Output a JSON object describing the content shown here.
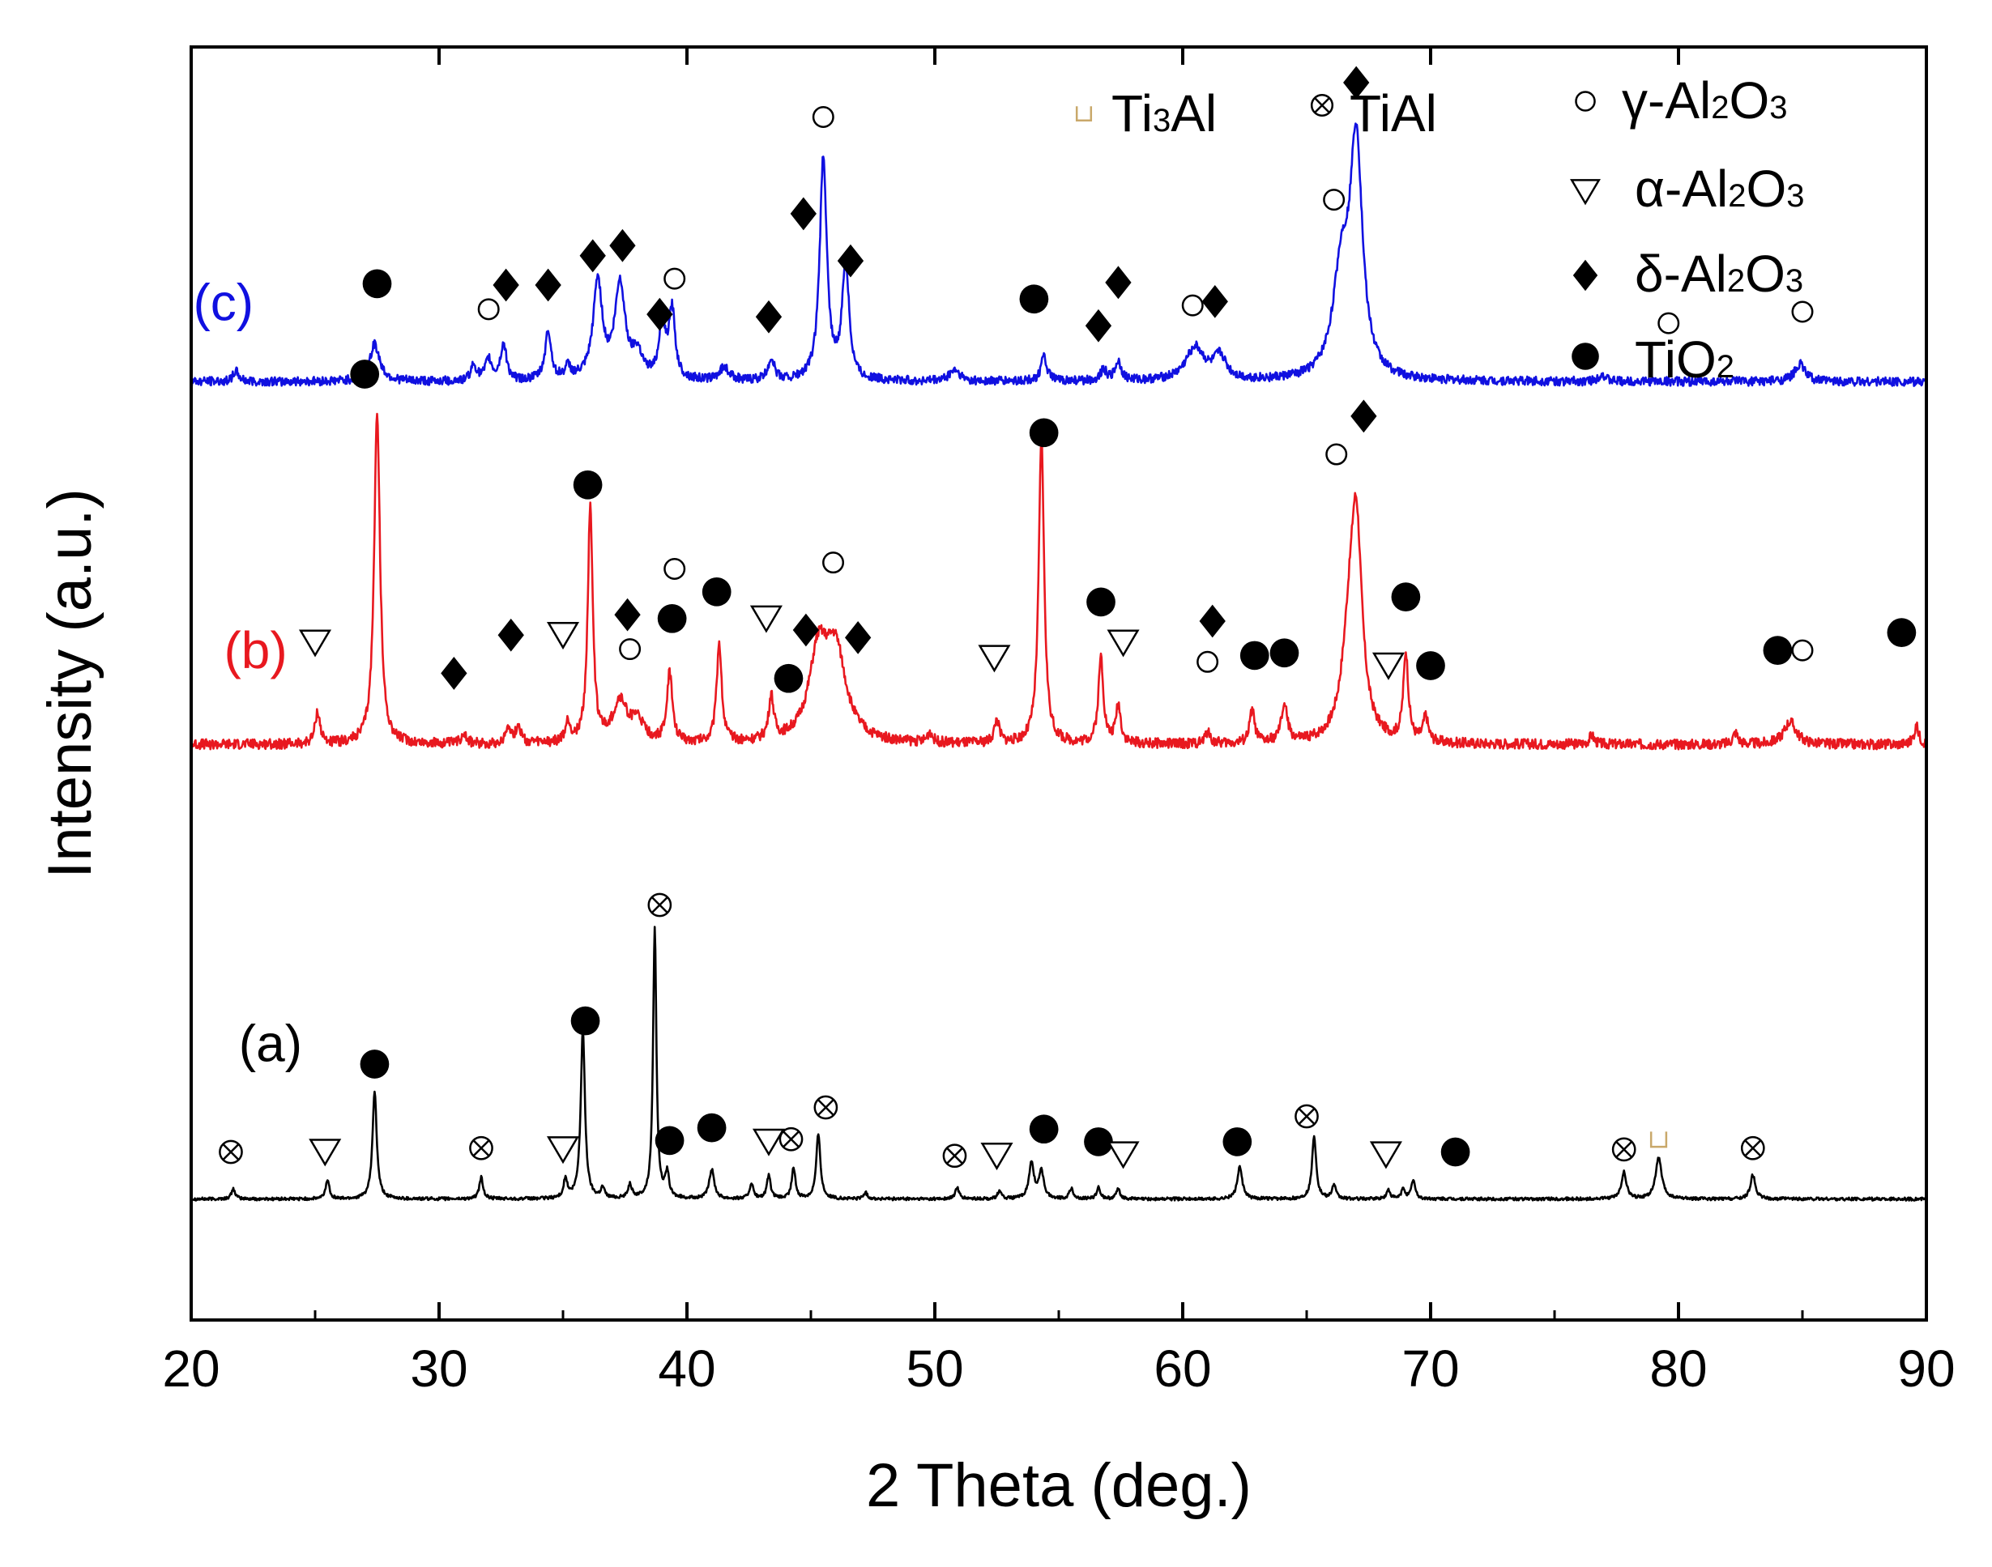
{
  "chart_data": {
    "type": "line",
    "title": "",
    "xlabel": "2 Theta (deg.)",
    "ylabel": "Intensity (a.u.)",
    "xlim": [
      20,
      90
    ],
    "ylim": [
      0,
      100
    ],
    "xticks": [
      20,
      30,
      40,
      50,
      60,
      70,
      80,
      90
    ],
    "y_ticks_shown": false,
    "grid": false,
    "legend": {
      "position": "top-right",
      "entries": [
        {
          "marker": "square-open",
          "name": "Ti3Al",
          "base": "Ti",
          "sub1": "3",
          "rest": "Al",
          "sub2": "",
          "tail": "",
          "color": "#c9a86a"
        },
        {
          "marker": "circle-cross",
          "name": "TiAl",
          "base": "TiAl",
          "sub1": "",
          "rest": "",
          "sub2": "",
          "tail": "",
          "color": "#000000"
        },
        {
          "marker": "circle-open",
          "name": "γ-Al2O3",
          "base": "γ-Al",
          "sub1": "2",
          "rest": "O",
          "sub2": "3",
          "tail": "",
          "color": "#000000"
        },
        {
          "marker": "triangle-down-open",
          "name": "α-Al2O3",
          "base": "α-Al",
          "sub1": "2",
          "rest": "O",
          "sub2": "3",
          "tail": "",
          "color": "#000000"
        },
        {
          "marker": "diamond-filled",
          "name": "δ-Al2O3",
          "base": "δ-Al",
          "sub1": "2",
          "rest": "O",
          "sub2": "3",
          "tail": "",
          "color": "#000000"
        },
        {
          "marker": "circle-filled",
          "name": "TiO2",
          "base": "TiO",
          "sub1": "2",
          "rest": "",
          "sub2": "",
          "tail": "",
          "color": "#000000"
        }
      ]
    },
    "series": [
      {
        "name": "(a)",
        "color": "#000000",
        "baseline": 9.5,
        "noise": 0.12,
        "width_default": 0.09,
        "peaks": [
          {
            "x": 21.7,
            "h": 0.8
          },
          {
            "x": 25.5,
            "h": 1.5
          },
          {
            "x": 27.4,
            "h": 8.5,
            "w": 0.1
          },
          {
            "x": 31.7,
            "h": 1.7
          },
          {
            "x": 35.1,
            "h": 1.5
          },
          {
            "x": 35.8,
            "h": 13.4,
            "w": 0.1
          },
          {
            "x": 36.6,
            "h": 0.8
          },
          {
            "x": 37.7,
            "h": 1.1
          },
          {
            "x": 38.7,
            "h": 21.3,
            "w": 0.08
          },
          {
            "x": 39.2,
            "h": 1.9
          },
          {
            "x": 41.0,
            "h": 2.3,
            "w": 0.12
          },
          {
            "x": 42.6,
            "h": 1.2
          },
          {
            "x": 43.3,
            "h": 1.8
          },
          {
            "x": 44.3,
            "h": 2.4
          },
          {
            "x": 45.3,
            "h": 5.1,
            "w": 0.1
          },
          {
            "x": 47.2,
            "h": 0.5
          },
          {
            "x": 50.9,
            "h": 0.9
          },
          {
            "x": 52.6,
            "h": 0.6
          },
          {
            "x": 53.9,
            "h": 2.8,
            "w": 0.12
          },
          {
            "x": 54.3,
            "h": 2.1,
            "w": 0.12
          },
          {
            "x": 55.5,
            "h": 0.8
          },
          {
            "x": 56.6,
            "h": 0.9
          },
          {
            "x": 57.4,
            "h": 0.8
          },
          {
            "x": 62.3,
            "h": 2.5,
            "w": 0.12
          },
          {
            "x": 65.3,
            "h": 5.0,
            "w": 0.1
          },
          {
            "x": 66.1,
            "h": 1.1
          },
          {
            "x": 68.3,
            "h": 0.7
          },
          {
            "x": 68.9,
            "h": 0.8
          },
          {
            "x": 69.3,
            "h": 1.5
          },
          {
            "x": 77.8,
            "h": 2.1,
            "w": 0.12
          },
          {
            "x": 79.2,
            "h": 3.2,
            "w": 0.15
          },
          {
            "x": 83.0,
            "h": 1.9,
            "w": 0.12
          }
        ],
        "markers": [
          {
            "x": 21.6,
            "y": 13.2,
            "m": "circle-cross"
          },
          {
            "x": 25.4,
            "y": 13.3,
            "m": "triangle-down-open"
          },
          {
            "x": 27.4,
            "y": 20.1,
            "m": "circle-filled"
          },
          {
            "x": 31.7,
            "y": 13.5,
            "m": "circle-cross"
          },
          {
            "x": 35.0,
            "y": 13.5,
            "m": "triangle-down-open"
          },
          {
            "x": 35.9,
            "y": 23.5,
            "m": "circle-filled"
          },
          {
            "x": 38.9,
            "y": 32.6,
            "m": "circle-cross"
          },
          {
            "x": 39.3,
            "y": 14.1,
            "m": "circle-filled"
          },
          {
            "x": 41.0,
            "y": 15.1,
            "m": "circle-filled"
          },
          {
            "x": 43.3,
            "y": 14.1,
            "m": "triangle-down-open"
          },
          {
            "x": 44.2,
            "y": 14.2,
            "m": "circle-cross"
          },
          {
            "x": 45.6,
            "y": 16.7,
            "m": "circle-cross"
          },
          {
            "x": 50.8,
            "y": 12.9,
            "m": "circle-cross"
          },
          {
            "x": 52.5,
            "y": 13.0,
            "m": "triangle-down-open"
          },
          {
            "x": 54.4,
            "y": 15.0,
            "m": "circle-filled"
          },
          {
            "x": 56.6,
            "y": 14.0,
            "m": "circle-filled"
          },
          {
            "x": 57.6,
            "y": 13.1,
            "m": "triangle-down-open"
          },
          {
            "x": 62.2,
            "y": 14.0,
            "m": "circle-filled"
          },
          {
            "x": 65.0,
            "y": 16.0,
            "m": "circle-cross"
          },
          {
            "x": 68.2,
            "y": 13.1,
            "m": "triangle-down-open"
          },
          {
            "x": 71.0,
            "y": 13.2,
            "m": "circle-filled"
          },
          {
            "x": 77.8,
            "y": 13.4,
            "m": "circle-cross"
          },
          {
            "x": 79.2,
            "y": 14.2,
            "m": "square-open"
          },
          {
            "x": 83.0,
            "y": 13.5,
            "m": "circle-cross"
          }
        ],
        "label": {
          "text": "(a)",
          "x": 23.2,
          "y": 21.4
        }
      },
      {
        "name": "(b)",
        "color": "#e8181f",
        "baseline": 45.2,
        "noise": 0.4,
        "width_default": 0.12,
        "peaks": [
          {
            "x": 25.1,
            "h": 2.5
          },
          {
            "x": 27.5,
            "h": 26.2,
            "w": 0.14
          },
          {
            "x": 31.0,
            "h": 0.9
          },
          {
            "x": 32.8,
            "h": 1.4
          },
          {
            "x": 33.2,
            "h": 1.4
          },
          {
            "x": 35.2,
            "h": 1.5
          },
          {
            "x": 36.1,
            "h": 18.6,
            "w": 0.12
          },
          {
            "x": 37.3,
            "h": 3.2,
            "w": 0.35
          },
          {
            "x": 38.0,
            "h": 1.6,
            "w": 0.3
          },
          {
            "x": 39.3,
            "h": 5.4,
            "w": 0.13
          },
          {
            "x": 41.3,
            "h": 7.9,
            "w": 0.12
          },
          {
            "x": 43.4,
            "h": 3.4,
            "w": 0.12
          },
          {
            "x": 45.3,
            "h": 6.5,
            "w": 0.45
          },
          {
            "x": 46.0,
            "h": 6.8,
            "w": 0.5
          },
          {
            "x": 49.8,
            "h": 0.8
          },
          {
            "x": 52.5,
            "h": 1.8
          },
          {
            "x": 54.3,
            "h": 24.1,
            "w": 0.13
          },
          {
            "x": 56.7,
            "h": 6.8,
            "w": 0.12
          },
          {
            "x": 57.4,
            "h": 3.0
          },
          {
            "x": 61.0,
            "h": 0.9
          },
          {
            "x": 62.8,
            "h": 2.6
          },
          {
            "x": 64.1,
            "h": 2.9,
            "w": 0.15
          },
          {
            "x": 66.7,
            "h": 6.0,
            "w": 0.35
          },
          {
            "x": 67.0,
            "h": 16.0,
            "w": 0.28
          },
          {
            "x": 69.0,
            "h": 6.9,
            "w": 0.12
          },
          {
            "x": 69.8,
            "h": 2.0
          },
          {
            "x": 76.5,
            "h": 0.7
          },
          {
            "x": 82.3,
            "h": 0.9
          },
          {
            "x": 84.5,
            "h": 1.8,
            "w": 0.3
          },
          {
            "x": 89.6,
            "h": 1.4
          }
        ],
        "markers": [
          {
            "x": 25.0,
            "y": 53.3,
            "m": "triangle-down-open"
          },
          {
            "x": 27.0,
            "y": 74.3,
            "m": "circle-filled"
          },
          {
            "x": 30.6,
            "y": 50.8,
            "m": "diamond-filled"
          },
          {
            "x": 32.9,
            "y": 53.8,
            "m": "diamond-filled"
          },
          {
            "x": 35.0,
            "y": 53.9,
            "m": "triangle-down-open"
          },
          {
            "x": 36.0,
            "y": 65.6,
            "m": "circle-filled"
          },
          {
            "x": 37.7,
            "y": 52.7,
            "m": "circle-open"
          },
          {
            "x": 37.6,
            "y": 55.4,
            "m": "diamond-filled"
          },
          {
            "x": 39.4,
            "y": 55.1,
            "m": "circle-filled"
          },
          {
            "x": 39.5,
            "y": 59.0,
            "m": "circle-open"
          },
          {
            "x": 41.2,
            "y": 57.2,
            "m": "circle-filled"
          },
          {
            "x": 43.2,
            "y": 55.2,
            "m": "triangle-down-open"
          },
          {
            "x": 44.1,
            "y": 50.4,
            "m": "circle-filled"
          },
          {
            "x": 44.8,
            "y": 54.2,
            "m": "diamond-filled"
          },
          {
            "x": 45.9,
            "y": 59.5,
            "m": "circle-open"
          },
          {
            "x": 46.9,
            "y": 53.6,
            "m": "diamond-filled"
          },
          {
            "x": 52.4,
            "y": 52.1,
            "m": "triangle-down-open"
          },
          {
            "x": 54.4,
            "y": 69.7,
            "m": "circle-filled"
          },
          {
            "x": 56.7,
            "y": 56.4,
            "m": "circle-filled"
          },
          {
            "x": 57.6,
            "y": 53.3,
            "m": "triangle-down-open"
          },
          {
            "x": 61.0,
            "y": 51.7,
            "m": "circle-open"
          },
          {
            "x": 61.2,
            "y": 54.9,
            "m": "diamond-filled"
          },
          {
            "x": 62.9,
            "y": 52.2,
            "m": "circle-filled"
          },
          {
            "x": 64.1,
            "y": 52.4,
            "m": "circle-filled"
          },
          {
            "x": 66.2,
            "y": 68.0,
            "m": "circle-open"
          },
          {
            "x": 67.3,
            "y": 71.0,
            "m": "diamond-filled"
          },
          {
            "x": 69.0,
            "y": 56.8,
            "m": "circle-filled"
          },
          {
            "x": 68.3,
            "y": 51.5,
            "m": "triangle-down-open"
          },
          {
            "x": 70.0,
            "y": 51.4,
            "m": "circle-filled"
          },
          {
            "x": 84.0,
            "y": 52.6,
            "m": "circle-filled"
          },
          {
            "x": 85.0,
            "y": 52.6,
            "m": "circle-open"
          },
          {
            "x": 89.0,
            "y": 54.0,
            "m": "circle-filled"
          }
        ],
        "label": {
          "text": "(b)",
          "x": 22.6,
          "y": 52.3
        }
      },
      {
        "name": "(c)",
        "color": "#1010e0",
        "baseline": 73.7,
        "noise": 0.35,
        "width_default": 0.15,
        "peaks": [
          {
            "x": 21.8,
            "h": 0.8
          },
          {
            "x": 27.4,
            "h": 2.9,
            "w": 0.25
          },
          {
            "x": 31.4,
            "h": 1.2
          },
          {
            "x": 32.0,
            "h": 1.6
          },
          {
            "x": 32.6,
            "h": 2.8
          },
          {
            "x": 34.4,
            "h": 3.8
          },
          {
            "x": 35.2,
            "h": 0.9
          },
          {
            "x": 36.4,
            "h": 7.7,
            "w": 0.22
          },
          {
            "x": 37.3,
            "h": 7.4,
            "w": 0.25
          },
          {
            "x": 38.0,
            "h": 2.0,
            "w": 0.25
          },
          {
            "x": 39.0,
            "h": 4.6
          },
          {
            "x": 39.4,
            "h": 5.3
          },
          {
            "x": 41.5,
            "h": 1.0,
            "w": 0.25
          },
          {
            "x": 43.4,
            "h": 1.7
          },
          {
            "x": 45.5,
            "h": 17.5,
            "w": 0.17
          },
          {
            "x": 46.4,
            "h": 9.0,
            "w": 0.17
          },
          {
            "x": 50.8,
            "h": 0.9,
            "w": 0.25
          },
          {
            "x": 54.4,
            "h": 1.9
          },
          {
            "x": 56.8,
            "h": 0.9
          },
          {
            "x": 57.4,
            "h": 1.5
          },
          {
            "x": 60.5,
            "h": 2.6,
            "w": 0.45
          },
          {
            "x": 61.5,
            "h": 1.8,
            "w": 0.3
          },
          {
            "x": 66.4,
            "h": 8.0,
            "w": 0.4
          },
          {
            "x": 67.0,
            "h": 18.0,
            "w": 0.3
          },
          {
            "x": 76.9,
            "h": 0.6
          },
          {
            "x": 84.9,
            "h": 1.4,
            "w": 0.25
          }
        ],
        "markers": [
          {
            "x": 27.5,
            "y": 81.4,
            "m": "circle-filled"
          },
          {
            "x": 32.0,
            "y": 79.4,
            "m": "circle-open"
          },
          {
            "x": 32.7,
            "y": 81.3,
            "m": "diamond-filled"
          },
          {
            "x": 34.4,
            "y": 81.3,
            "m": "diamond-filled"
          },
          {
            "x": 36.2,
            "y": 83.6,
            "m": "diamond-filled"
          },
          {
            "x": 37.4,
            "y": 84.4,
            "m": "diamond-filled"
          },
          {
            "x": 38.9,
            "y": 79.0,
            "m": "diamond-filled"
          },
          {
            "x": 39.5,
            "y": 81.8,
            "m": "circle-open"
          },
          {
            "x": 43.3,
            "y": 78.8,
            "m": "diamond-filled"
          },
          {
            "x": 44.7,
            "y": 86.9,
            "m": "diamond-filled"
          },
          {
            "x": 45.5,
            "y": 94.5,
            "m": "circle-open"
          },
          {
            "x": 46.6,
            "y": 83.2,
            "m": "diamond-filled"
          },
          {
            "x": 54.0,
            "y": 80.2,
            "m": "circle-filled"
          },
          {
            "x": 56.6,
            "y": 78.1,
            "m": "diamond-filled"
          },
          {
            "x": 57.4,
            "y": 81.5,
            "m": "diamond-filled"
          },
          {
            "x": 60.4,
            "y": 79.7,
            "m": "circle-open"
          },
          {
            "x": 61.3,
            "y": 80.0,
            "m": "diamond-filled"
          },
          {
            "x": 66.1,
            "y": 88.0,
            "m": "circle-open"
          },
          {
            "x": 67.0,
            "y": 97.2,
            "m": "diamond-filled"
          },
          {
            "x": 79.6,
            "y": 78.3,
            "m": "circle-open"
          },
          {
            "x": 85.0,
            "y": 79.2,
            "m": "circle-open"
          }
        ],
        "label": {
          "text": "(c)",
          "x": 21.3,
          "y": 79.6
        }
      }
    ]
  }
}
